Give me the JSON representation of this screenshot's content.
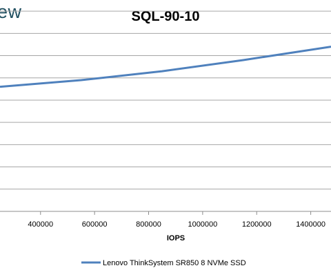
{
  "logo_fragment": "ew",
  "chart_data": {
    "type": "line",
    "title": "SQL-90-10",
    "xlabel": "IOPS",
    "ylabel": "",
    "x_ticks": [
      400000,
      600000,
      800000,
      1000000,
      1200000,
      1400000
    ],
    "x_tick_labels": [
      "400000",
      "600000",
      "800000",
      "1000000",
      "1200000",
      "1400000"
    ],
    "xlim": [
      250000,
      1475000
    ],
    "ylim": [
      0,
      9.5
    ],
    "y_gridlines": 10,
    "grid": true,
    "legend_position": "bottom",
    "series": [
      {
        "name": "Lenovo ThinkSystem SR850 8 NVMe SSD",
        "color": "#4f81bd",
        "x": [
          250000,
          550000,
          850000,
          1150000,
          1475000
        ],
        "y": [
          5.6,
          5.9,
          6.3,
          6.8,
          7.4
        ]
      }
    ]
  }
}
